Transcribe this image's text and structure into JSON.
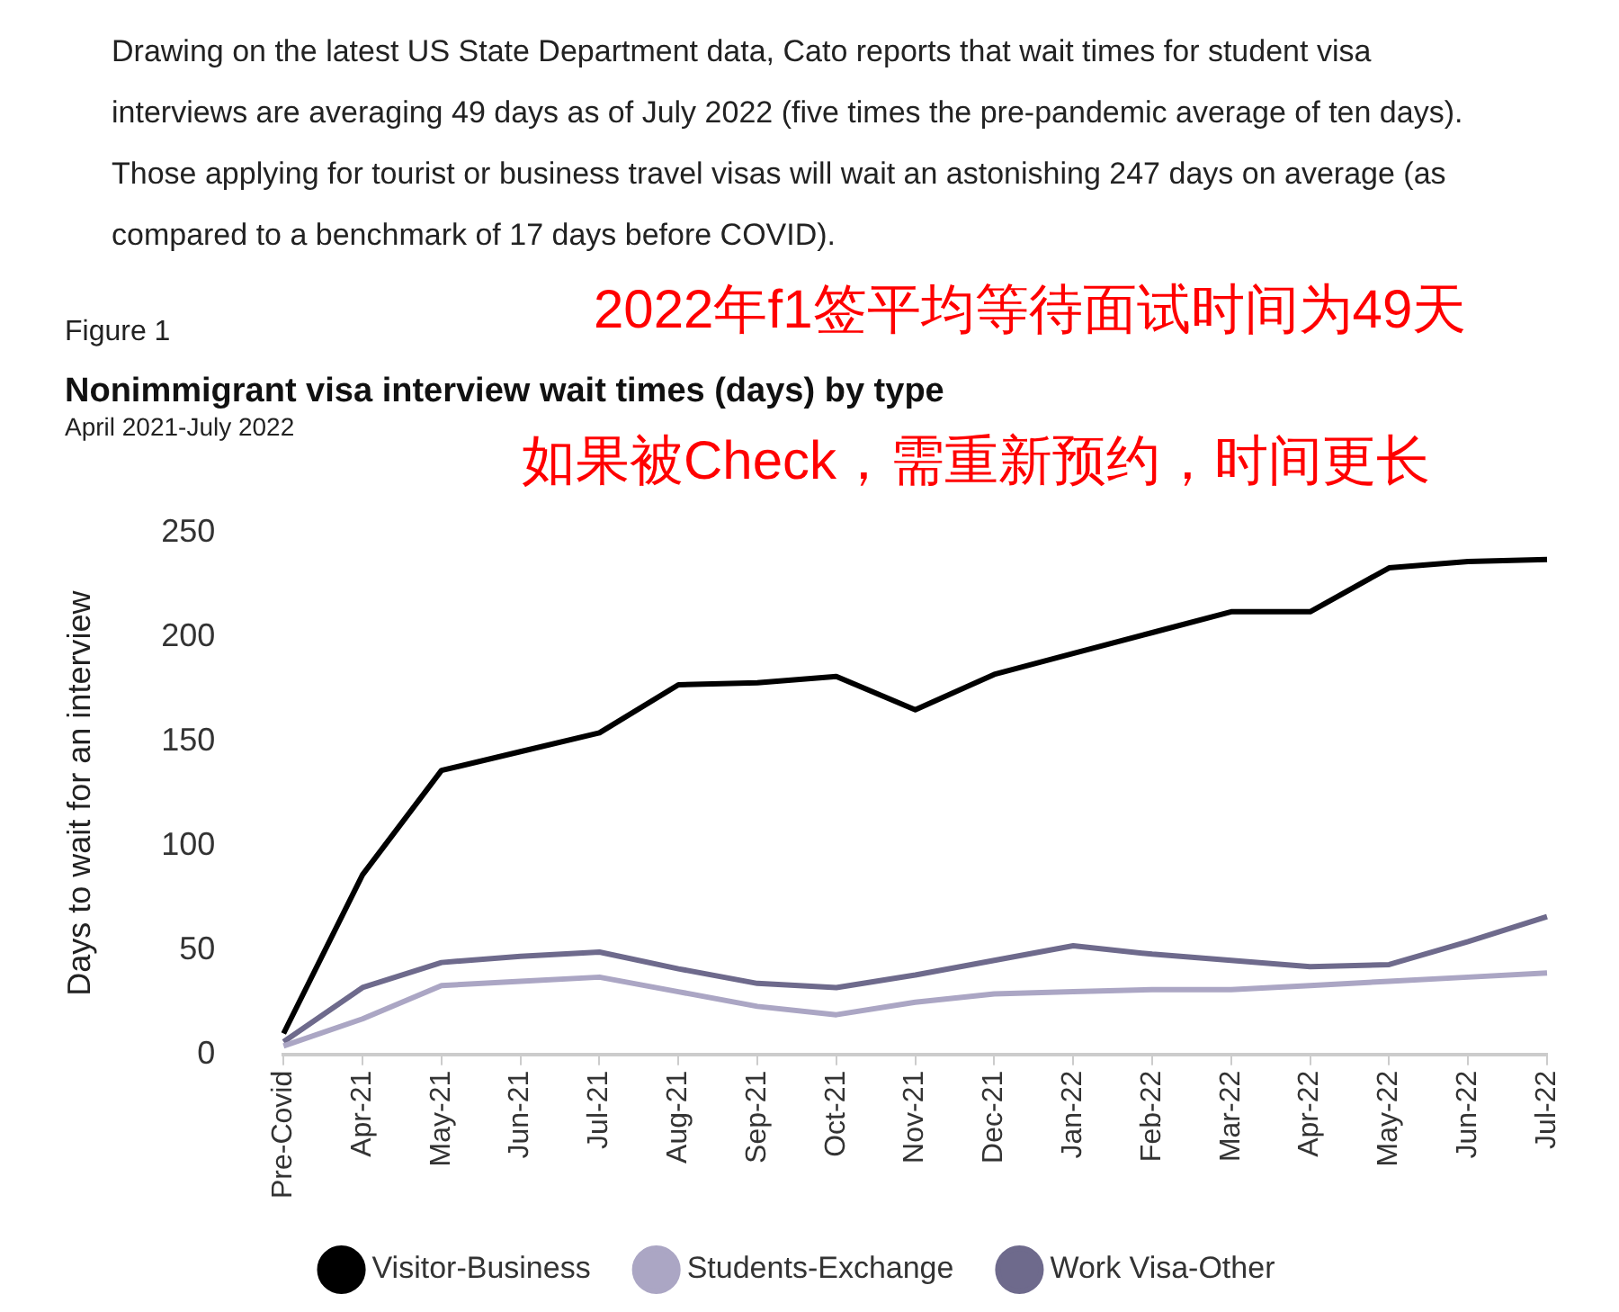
{
  "chart_data": {
    "type": "line",
    "title": "Nonimmigrant visa interview wait times (days) by type",
    "subtitle": "April 2021-July 2022",
    "ylabel": "Days to wait for an interview",
    "annotations": [
      "Drawing on the latest US State Department data, Cato reports that wait times for student visa interviews are averaging 49 days as of July 2022 (five times the pre-pandemic average of ten days). Those applying for tourist or business travel visas will wait an astonishing 247 days on average (as compared to a benchmark of 17 days before COVID).",
      "2022年f1签平均等待面试时间为49天",
      "Figure 1",
      "如果被Check，需重新预约，时间更长"
    ],
    "categories": [
      "Pre-Covid",
      "Apr-21",
      "May-21",
      "Jun-21",
      "Jul-21",
      "Aug-21",
      "Sep-21",
      "Oct-21",
      "Nov-21",
      "Dec-21",
      "Jan-22",
      "Feb-22",
      "Mar-22",
      "Apr-22",
      "May-22",
      "Jun-22",
      "Jul-22"
    ],
    "series": [
      {
        "name": "Visitor-Business",
        "color": "#000000",
        "values": [
          10,
          86,
          136,
          145,
          154,
          177,
          178,
          181,
          165,
          182,
          192,
          202,
          212,
          212,
          233,
          236,
          237
        ]
      },
      {
        "name": "Students-Exchange",
        "color": "#aba6c4",
        "values": [
          4,
          17,
          33,
          35,
          37,
          30,
          23,
          19,
          25,
          29,
          30,
          31,
          31,
          33,
          35,
          37,
          39
        ]
      },
      {
        "name": "Work Visa-Other",
        "color": "#6e6a8c",
        "values": [
          6,
          32,
          44,
          47,
          49,
          41,
          34,
          32,
          38,
          45,
          52,
          48,
          45,
          42,
          43,
          54,
          66
        ]
      }
    ],
    "ylim": [
      0,
      250
    ],
    "yticks": [
      0,
      50,
      100,
      150,
      200,
      250
    ],
    "legend": "bottom",
    "marker": "none",
    "line_style": "solid"
  }
}
